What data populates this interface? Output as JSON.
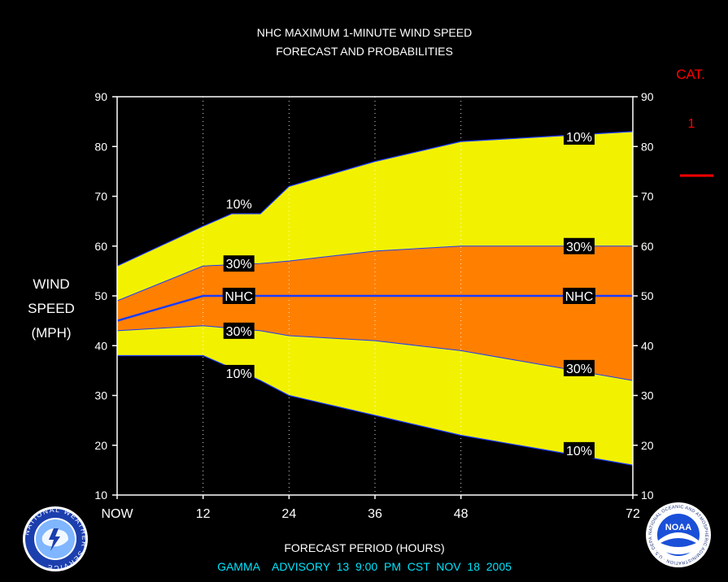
{
  "chart_data": {
    "type": "area",
    "title_line1": "NHC MAXIMUM 1-MINUTE WIND SPEED",
    "title_line2": "FORECAST AND PROBABILITIES",
    "ylabel_lines": [
      "WIND",
      "SPEED",
      "(MPH)"
    ],
    "xlabel": "FORECAST PERIOD (HOURS)",
    "ylim": [
      10,
      90
    ],
    "xlim": [
      0,
      72
    ],
    "yticks": [
      10,
      20,
      30,
      40,
      50,
      60,
      70,
      80,
      90
    ],
    "xticks": [
      {
        "x": 0,
        "label": "NOW"
      },
      {
        "x": 12,
        "label": "12"
      },
      {
        "x": 24,
        "label": "24"
      },
      {
        "x": 36,
        "label": "36"
      },
      {
        "x": 48,
        "label": "48"
      },
      {
        "x": 72,
        "label": "72"
      }
    ],
    "grid_x": [
      12,
      24,
      36,
      48
    ],
    "upper_10": {
      "x": [
        0,
        12,
        16,
        20,
        24,
        36,
        48,
        60,
        72
      ],
      "y": [
        56,
        64,
        66.5,
        66.5,
        72,
        77,
        81,
        82,
        83
      ]
    },
    "upper_30": {
      "x": [
        0,
        12,
        20,
        24,
        36,
        48,
        60,
        72
      ],
      "y": [
        49,
        56,
        56.5,
        57,
        59,
        60,
        60,
        60
      ]
    },
    "nhc": {
      "x": [
        0,
        12,
        72
      ],
      "y": [
        45,
        50,
        50
      ]
    },
    "lower_30": {
      "x": [
        0,
        12,
        20,
        24,
        36,
        48,
        60,
        72
      ],
      "y": [
        43,
        44,
        43,
        42,
        41,
        39,
        36,
        33
      ]
    },
    "lower_10": {
      "x": [
        0,
        12,
        16,
        20,
        24,
        36,
        48,
        60,
        72
      ],
      "y": [
        38,
        38,
        35.5,
        33,
        30,
        26,
        22,
        19,
        16
      ]
    },
    "labels": [
      {
        "text": "10%",
        "x": 17,
        "y": 68.5
      },
      {
        "text": "30%",
        "x": 17,
        "y": 56.5
      },
      {
        "text": "NHC",
        "x": 17,
        "y": 50
      },
      {
        "text": "30%",
        "x": 17,
        "y": 43
      },
      {
        "text": "10%",
        "x": 17,
        "y": 34.5
      },
      {
        "text": "10%",
        "x": 64.5,
        "y": 82
      },
      {
        "text": "30%",
        "x": 64.5,
        "y": 60
      },
      {
        "text": "NHC",
        "x": 64.5,
        "y": 50
      },
      {
        "text": "30%",
        "x": 64.5,
        "y": 35.5
      },
      {
        "text": "10%",
        "x": 64.5,
        "y": 19
      }
    ],
    "category": {
      "label": "CAT.",
      "value": "1",
      "marker_y": 75
    },
    "colors": {
      "background": "#000000",
      "plot_bg": "#000000",
      "band_10": "#f2f200",
      "band_30": "#ff8000",
      "nhc_line": "#1a3cff",
      "edge_line": "#1a3cff",
      "frame": "#ffffff",
      "category": "#ff0000",
      "footer": "#00e5ff",
      "label_box": "#000000"
    }
  },
  "footer": "GAMMA    ADVISORY  13  9:00  PM  CST  NOV  18  2005",
  "logos": {
    "nws_text": "NATIONAL WEATHER SERVICE",
    "noaa_text": "NOAA",
    "noaa_ring": "NATIONAL OCEANIC AND ATMOSPHERIC ADMINISTRATION · U.S. DEPARTMENT OF COMMERCE"
  }
}
